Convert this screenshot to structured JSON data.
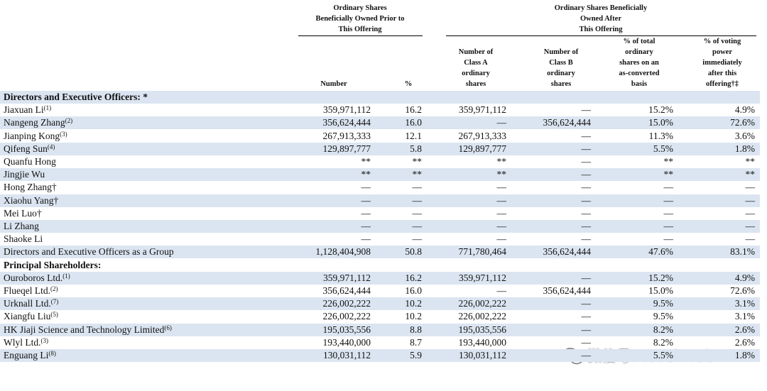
{
  "header": {
    "groups": [
      {
        "lines": [
          "Ordinary Shares",
          "Beneficially Owned Prior to",
          "This Offering"
        ]
      },
      {
        "lines": [
          "Ordinary Shares Beneficially",
          "Owned After",
          "This Offering"
        ]
      }
    ],
    "columns": [
      {
        "lines": [
          "Number"
        ]
      },
      {
        "lines": [
          "%"
        ]
      },
      {
        "lines": [
          "Number of",
          "Class A",
          "ordinary",
          "shares"
        ]
      },
      {
        "lines": [
          "Number of",
          "Class B",
          "ordinary",
          "shares"
        ]
      },
      {
        "lines": [
          "% of total",
          "ordinary",
          "shares on an",
          "as-converted",
          "basis"
        ]
      },
      {
        "lines": [
          "% of voting",
          "power",
          "immediately",
          "after this",
          "offering†‡"
        ]
      }
    ]
  },
  "table": {
    "rows": [
      {
        "label": "Directors and Executive Officers: *"
      },
      {
        "name": "Jiaxuan Li",
        "note": "(1)",
        "cells": [
          "359,971,112",
          "16.2",
          "359,971,112",
          "—",
          "15.2%",
          "4.9%"
        ]
      },
      {
        "name": "Nangeng Zhang",
        "note": "(2)",
        "cells": [
          "356,624,444",
          "16.0",
          "—",
          "356,624,444",
          "15.0%",
          "72.6%"
        ]
      },
      {
        "name": "Jianping Kong",
        "note": "(3)",
        "cells": [
          "267,913,333",
          "12.1",
          "267,913,333",
          "—",
          "11.3%",
          "3.6%"
        ]
      },
      {
        "name": "Qifeng Sun",
        "note": "(4)",
        "cells": [
          "129,897,777",
          "5.8",
          "129,897,777",
          "—",
          "5.5%",
          "1.8%"
        ]
      },
      {
        "name": "Quanfu Hong",
        "cells": [
          "**",
          "**",
          "**",
          "—",
          "**",
          "**"
        ]
      },
      {
        "name": "Jingjie Wu",
        "cells": [
          "**",
          "**",
          "**",
          "—",
          "**",
          "**"
        ]
      },
      {
        "name": "Hong Zhang†",
        "cells": [
          "—",
          "—",
          "—",
          "—",
          "—",
          "—"
        ]
      },
      {
        "name": "Xiaohu Yang†",
        "cells": [
          "—",
          "—",
          "—",
          "—",
          "—",
          "—"
        ]
      },
      {
        "name": "Mei Luo†",
        "cells": [
          "—",
          "—",
          "—",
          "—",
          "—",
          "—"
        ]
      },
      {
        "name": "Li Zhang",
        "cells": [
          "—",
          "—",
          "—",
          "—",
          "—",
          "—"
        ]
      },
      {
        "name": "Shaoke Li",
        "cells": [
          "—",
          "—",
          "—",
          "—",
          "—",
          "—"
        ]
      },
      {
        "name": "Directors and Executive Officers as a Group",
        "cells": [
          "1,128,404,908",
          "50.8",
          "771,780,464",
          "356,624,444",
          "47.6%",
          "83.1%"
        ]
      },
      {
        "label": "Principal Shareholders:"
      },
      {
        "name": "Ouroboros Ltd.",
        "note": "(1)",
        "cells": [
          "359,971,112",
          "16.2",
          "359,971,112",
          "—",
          "15.2%",
          "4.9%"
        ]
      },
      {
        "name": "Flueqel Ltd.",
        "note": "(2)",
        "cells": [
          "356,624,444",
          "16.0",
          "—",
          "356,624,444",
          "15.0%",
          "72.6%"
        ]
      },
      {
        "name": "Urknall Ltd.",
        "note": "(7)",
        "cells": [
          "226,002,222",
          "10.2",
          "226,002,222",
          "—",
          "9.5%",
          "3.1%"
        ]
      },
      {
        "name": "Xiangfu Liu",
        "note": "(5)",
        "cells": [
          "226,002,222",
          "10.2",
          "226,002,222",
          "—",
          "9.5%",
          "3.1%"
        ]
      },
      {
        "name": "HK Jiaji Science and Technology Limited",
        "note": "(6)",
        "cells": [
          "195,035,556",
          "8.8",
          "195,035,556",
          "—",
          "8.2%",
          "2.6%"
        ]
      },
      {
        "name": "Wlyl Ltd.",
        "note": "(3)",
        "cells": [
          "193,440,000",
          "8.7",
          "193,440,000",
          "—",
          "8.2%",
          "2.6%"
        ]
      },
      {
        "name": "Enguang Li",
        "note": "(8)",
        "cells": [
          "130,031,112",
          "5.9",
          "130,031,112",
          "—",
          "5.5%",
          "1.8%"
        ]
      }
    ]
  },
  "watermark": "微信号: touchweb"
}
